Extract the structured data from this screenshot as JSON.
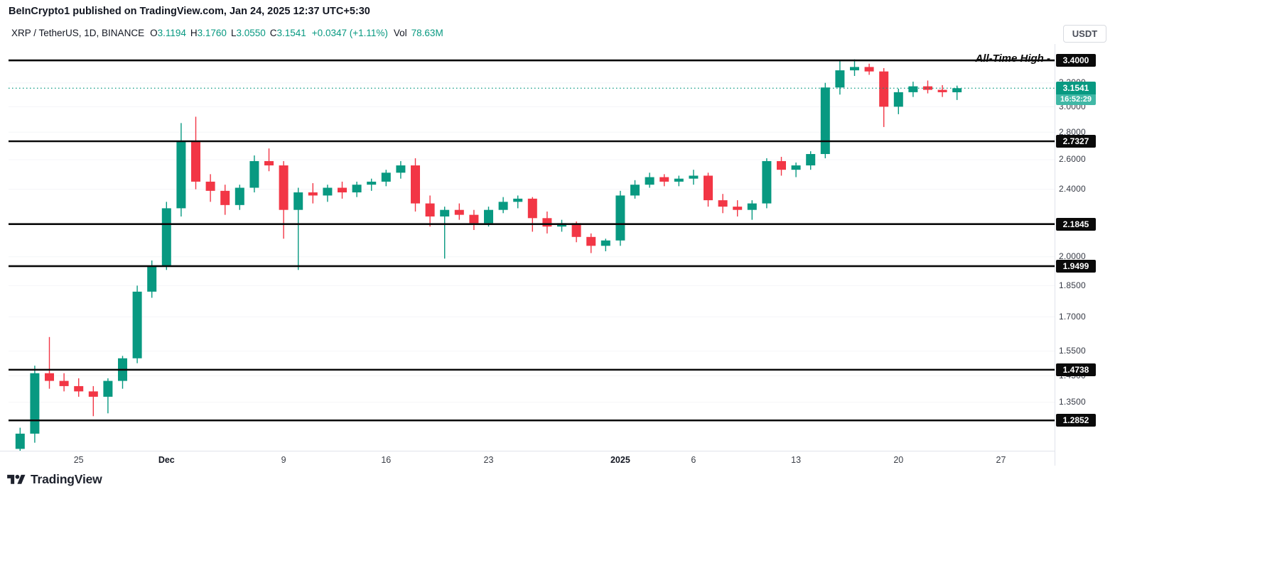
{
  "header": {
    "published_line": "BeInCrypto1 published on TradingView.com, Jan 24, 2025 12:37 UTC+5:30"
  },
  "legend": {
    "symbol": "XRP / TetherUS, 1D, BINANCE",
    "o_label": "O",
    "o": "3.1194",
    "h_label": "H",
    "h": "3.1760",
    "l_label": "L",
    "l": "3.0550",
    "c_label": "C",
    "c": "3.1541",
    "change": "+0.0347 (+1.11%)",
    "vol_label": "Vol",
    "vol": "78.63M"
  },
  "toolbar": {
    "currency_button": "USDT"
  },
  "footer": {
    "brand": "TradingView"
  },
  "chart_data": {
    "type": "candlestick",
    "symbol": "XRP / TetherUS",
    "timeframe": "1D",
    "exchange": "BINANCE",
    "scale": "log",
    "ylim": [
      1.184,
      3.554
    ],
    "grid": false,
    "up_color": "#089981",
    "down_color": "#f23645",
    "level_color": "#0a0a0a",
    "ath_label": "All-Time High -",
    "price_line": {
      "value": 3.1541,
      "label": "3.1541",
      "countdown": "16:52:29",
      "color": "#089981",
      "countdown_color": "#41b8a6"
    },
    "levels": [
      {
        "price": 3.4,
        "label": "3.4000",
        "annotation": "All-Time High -"
      },
      {
        "price": 2.7327,
        "label": "2.7327"
      },
      {
        "price": 2.1845,
        "label": "2.1845"
      },
      {
        "price": 1.9499,
        "label": "1.9499"
      },
      {
        "price": 1.4738,
        "label": "1.4738"
      },
      {
        "price": 1.2852,
        "label": "1.2852"
      }
    ],
    "y_ticks": [
      {
        "price": 3.2,
        "label": "3.2000"
      },
      {
        "price": 3.0,
        "label": "3.0000"
      },
      {
        "price": 2.8,
        "label": "2.8000"
      },
      {
        "price": 2.6,
        "label": "2.6000"
      },
      {
        "price": 2.4,
        "label": "2.4000"
      },
      {
        "price": 2.0,
        "label": "2.0000"
      },
      {
        "price": 1.85,
        "label": "1.8500"
      },
      {
        "price": 1.7,
        "label": "1.7000"
      },
      {
        "price": 1.55,
        "label": "1.5500"
      },
      {
        "price": 1.45,
        "label": "1.4500"
      },
      {
        "price": 1.35,
        "label": "1.3500"
      }
    ],
    "x_ticks": [
      {
        "index": 4,
        "label": "25",
        "bold": false
      },
      {
        "index": 10,
        "label": "Dec",
        "bold": true
      },
      {
        "index": 18,
        "label": "9",
        "bold": false
      },
      {
        "index": 25,
        "label": "16",
        "bold": false
      },
      {
        "index": 32,
        "label": "23",
        "bold": false
      },
      {
        "index": 41,
        "label": "2025",
        "bold": true
      },
      {
        "index": 46,
        "label": "6",
        "bold": false
      },
      {
        "index": 53,
        "label": "13",
        "bold": false
      },
      {
        "index": 60,
        "label": "20",
        "bold": false
      },
      {
        "index": 67,
        "label": "27",
        "bold": false
      }
    ],
    "candles": [
      [
        1.19,
        1.26,
        1.16,
        1.24
      ],
      [
        1.24,
        1.49,
        1.21,
        1.46
      ],
      [
        1.46,
        1.61,
        1.4,
        1.43
      ],
      [
        1.43,
        1.46,
        1.39,
        1.41
      ],
      [
        1.41,
        1.44,
        1.37,
        1.39
      ],
      [
        1.39,
        1.41,
        1.3,
        1.37
      ],
      [
        1.37,
        1.44,
        1.31,
        1.43
      ],
      [
        1.43,
        1.53,
        1.4,
        1.52
      ],
      [
        1.52,
        1.85,
        1.5,
        1.82
      ],
      [
        1.82,
        1.98,
        1.79,
        1.95
      ],
      [
        1.95,
        2.32,
        1.93,
        2.28
      ],
      [
        2.28,
        2.87,
        2.23,
        2.73
      ],
      [
        2.73,
        2.92,
        2.4,
        2.45
      ],
      [
        2.45,
        2.5,
        2.32,
        2.39
      ],
      [
        2.39,
        2.43,
        2.24,
        2.3
      ],
      [
        2.3,
        2.43,
        2.27,
        2.41
      ],
      [
        2.41,
        2.63,
        2.38,
        2.59
      ],
      [
        2.59,
        2.68,
        2.52,
        2.56
      ],
      [
        2.56,
        2.59,
        2.1,
        2.27
      ],
      [
        2.27,
        2.41,
        1.93,
        2.38
      ],
      [
        2.38,
        2.44,
        2.31,
        2.36
      ],
      [
        2.36,
        2.43,
        2.32,
        2.41
      ],
      [
        2.41,
        2.45,
        2.34,
        2.38
      ],
      [
        2.38,
        2.45,
        2.35,
        2.43
      ],
      [
        2.43,
        2.47,
        2.39,
        2.45
      ],
      [
        2.45,
        2.53,
        2.42,
        2.51
      ],
      [
        2.51,
        2.59,
        2.47,
        2.56
      ],
      [
        2.56,
        2.61,
        2.26,
        2.31
      ],
      [
        2.31,
        2.36,
        2.17,
        2.23
      ],
      [
        2.23,
        2.29,
        1.99,
        2.27
      ],
      [
        2.27,
        2.31,
        2.21,
        2.24
      ],
      [
        2.24,
        2.27,
        2.15,
        2.19
      ],
      [
        2.19,
        2.29,
        2.17,
        2.27
      ],
      [
        2.27,
        2.35,
        2.25,
        2.32
      ],
      [
        2.32,
        2.36,
        2.28,
        2.34
      ],
      [
        2.34,
        2.35,
        2.14,
        2.22
      ],
      [
        2.22,
        2.26,
        2.13,
        2.17
      ],
      [
        2.17,
        2.21,
        2.14,
        2.19
      ],
      [
        2.19,
        2.2,
        2.08,
        2.11
      ],
      [
        2.11,
        2.13,
        2.02,
        2.06
      ],
      [
        2.06,
        2.1,
        2.03,
        2.09
      ],
      [
        2.09,
        2.39,
        2.06,
        2.36
      ],
      [
        2.36,
        2.46,
        2.34,
        2.43
      ],
      [
        2.43,
        2.51,
        2.41,
        2.48
      ],
      [
        2.48,
        2.5,
        2.42,
        2.45
      ],
      [
        2.45,
        2.49,
        2.42,
        2.47
      ],
      [
        2.47,
        2.53,
        2.43,
        2.49
      ],
      [
        2.49,
        2.51,
        2.29,
        2.33
      ],
      [
        2.33,
        2.37,
        2.25,
        2.29
      ],
      [
        2.29,
        2.33,
        2.23,
        2.27
      ],
      [
        2.27,
        2.33,
        2.21,
        2.31
      ],
      [
        2.31,
        2.61,
        2.28,
        2.59
      ],
      [
        2.59,
        2.62,
        2.49,
        2.53
      ],
      [
        2.53,
        2.58,
        2.48,
        2.56
      ],
      [
        2.56,
        2.66,
        2.53,
        2.64
      ],
      [
        2.64,
        3.2,
        2.61,
        3.16
      ],
      [
        3.16,
        3.4,
        3.1,
        3.31
      ],
      [
        3.31,
        3.41,
        3.26,
        3.34
      ],
      [
        3.34,
        3.37,
        3.27,
        3.3
      ],
      [
        3.3,
        3.33,
        2.84,
        3.0
      ],
      [
        3.0,
        3.15,
        2.94,
        3.12
      ],
      [
        3.12,
        3.21,
        3.08,
        3.17
      ],
      [
        3.17,
        3.22,
        3.11,
        3.14
      ],
      [
        3.14,
        3.18,
        3.08,
        3.12
      ],
      [
        3.1194,
        3.176,
        3.055,
        3.1541
      ]
    ]
  }
}
